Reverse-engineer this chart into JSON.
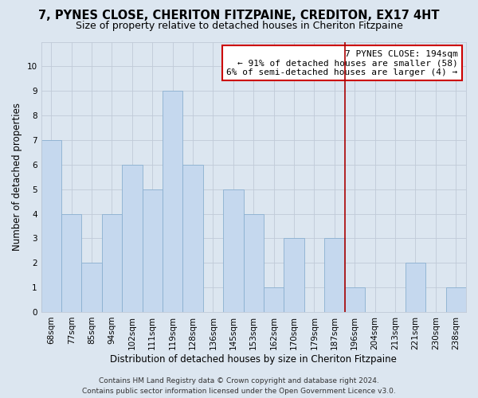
{
  "title": "7, PYNES CLOSE, CHERITON FITZPAINE, CREDITON, EX17 4HT",
  "subtitle": "Size of property relative to detached houses in Cheriton Fitzpaine",
  "xlabel": "Distribution of detached houses by size in Cheriton Fitzpaine",
  "ylabel": "Number of detached properties",
  "bar_labels": [
    "68sqm",
    "77sqm",
    "85sqm",
    "94sqm",
    "102sqm",
    "111sqm",
    "119sqm",
    "128sqm",
    "136sqm",
    "145sqm",
    "153sqm",
    "162sqm",
    "170sqm",
    "179sqm",
    "187sqm",
    "196sqm",
    "204sqm",
    "213sqm",
    "221sqm",
    "230sqm",
    "238sqm"
  ],
  "bar_values": [
    7,
    4,
    2,
    4,
    6,
    5,
    9,
    6,
    0,
    5,
    4,
    1,
    3,
    0,
    3,
    1,
    0,
    0,
    2,
    0,
    1
  ],
  "bar_color": "#c5d8ee",
  "bar_edge_color": "#8ab0d0",
  "grid_color": "#c0cad8",
  "background_color": "#dce6f0",
  "vline_x": 15,
  "vline_color": "#aa0000",
  "annotation_text": "7 PYNES CLOSE: 194sqm\n← 91% of detached houses are smaller (58)\n6% of semi-detached houses are larger (4) →",
  "annotation_box_color": "#ffffff",
  "annotation_box_edge_color": "#cc0000",
  "ylim": [
    0,
    11
  ],
  "yticks": [
    0,
    1,
    2,
    3,
    4,
    5,
    6,
    7,
    8,
    9,
    10,
    11
  ],
  "footer_text": "Contains HM Land Registry data © Crown copyright and database right 2024.\nContains public sector information licensed under the Open Government Licence v3.0.",
  "title_fontsize": 10.5,
  "subtitle_fontsize": 9,
  "xlabel_fontsize": 8.5,
  "ylabel_fontsize": 8.5,
  "tick_fontsize": 7.5,
  "annotation_fontsize": 8,
  "footer_fontsize": 6.5
}
